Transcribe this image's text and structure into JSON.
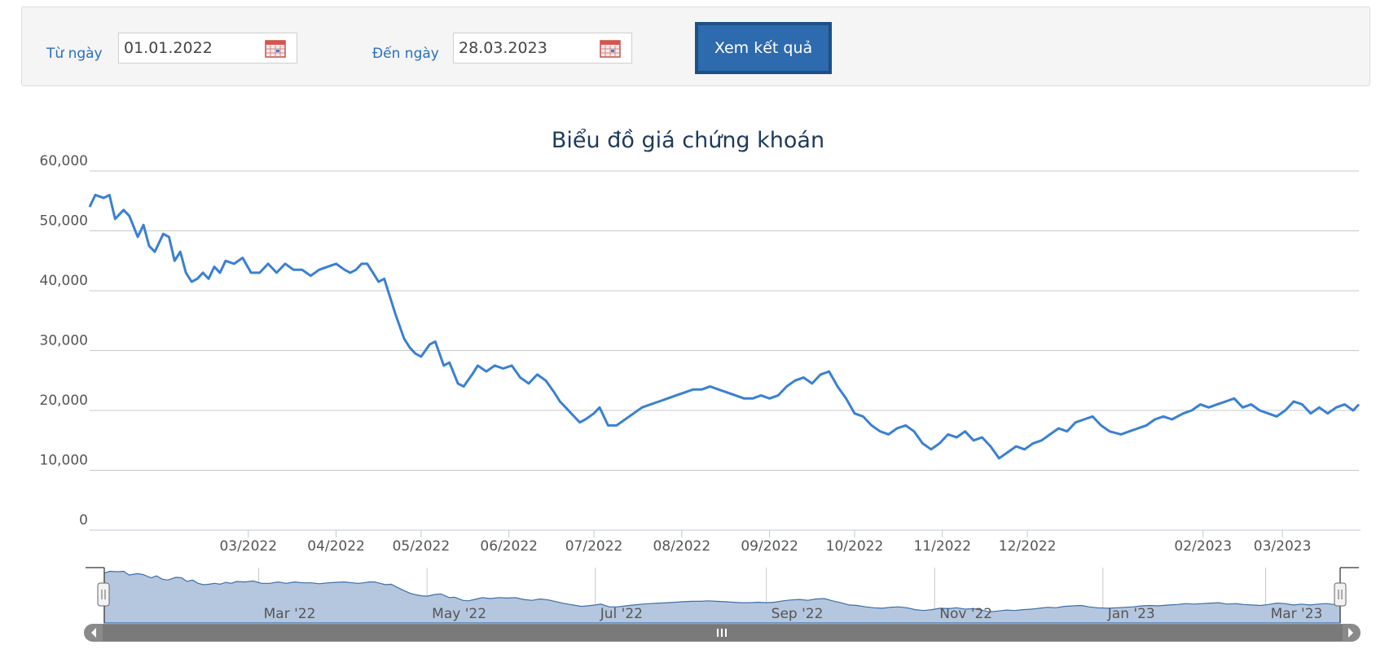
{
  "filter": {
    "from_label": "Từ ngày",
    "from_value": "01.01.2022",
    "to_label": "Đến ngày",
    "to_value": "28.03.2023",
    "submit_label": "Xem kết quả"
  },
  "colors": {
    "line": "#3a80d2",
    "grid": "#c8c8c8",
    "navigator_fill": "#b5c7df",
    "navigator_line": "#3d6ea8",
    "scrollbar": "#8a8a8a"
  },
  "chart_data": {
    "type": "line",
    "title": "Biểu đồ giá chứng khoán",
    "ylim": [
      0,
      60000
    ],
    "yticks": [
      "0",
      "10,000",
      "20,000",
      "30,000",
      "40,000",
      "50,000",
      "60,000"
    ],
    "xlim": [
      "2022-01-04",
      "2023-03-28"
    ],
    "xticks": [
      {
        "date": "2022-03-01",
        "label": "03/2022"
      },
      {
        "date": "2022-04-01",
        "label": "04/2022"
      },
      {
        "date": "2022-05-01",
        "label": "05/2022"
      },
      {
        "date": "2022-06-01",
        "label": "06/2022"
      },
      {
        "date": "2022-07-01",
        "label": "07/2022"
      },
      {
        "date": "2022-08-01",
        "label": "08/2022"
      },
      {
        "date": "2022-09-01",
        "label": "09/2022"
      },
      {
        "date": "2022-10-01",
        "label": "10/2022"
      },
      {
        "date": "2022-11-01",
        "label": "11/2022"
      },
      {
        "date": "2022-12-01",
        "label": "12/2022"
      },
      {
        "date": "2023-02-01",
        "label": "02/2023"
      },
      {
        "date": "2023-03-01",
        "label": "03/2023"
      }
    ],
    "navigator_ticks": [
      {
        "date": "2022-03-01",
        "label": "Mar '22"
      },
      {
        "date": "2022-05-01",
        "label": "May '22"
      },
      {
        "date": "2022-07-01",
        "label": "Jul '22"
      },
      {
        "date": "2022-09-01",
        "label": "Sep '22"
      },
      {
        "date": "2022-11-01",
        "label": "Nov '22"
      },
      {
        "date": "2023-01-01",
        "label": "Jan '23"
      },
      {
        "date": "2023-03-01",
        "label": "Mar '23"
      }
    ],
    "grid": true,
    "legend": "none",
    "series": [
      {
        "x": [
          "2022-01-04",
          "2022-01-06",
          "2022-01-09",
          "2022-01-11",
          "2022-01-13",
          "2022-01-16",
          "2022-01-18",
          "2022-01-21",
          "2022-01-23",
          "2022-01-25",
          "2022-01-27",
          "2022-01-30",
          "2022-02-01",
          "2022-02-03",
          "2022-02-05",
          "2022-02-07",
          "2022-02-09",
          "2022-02-11",
          "2022-02-13",
          "2022-02-15",
          "2022-02-17",
          "2022-02-19",
          "2022-02-21",
          "2022-02-24",
          "2022-02-27",
          "2022-03-02",
          "2022-03-05",
          "2022-03-08",
          "2022-03-11",
          "2022-03-14",
          "2022-03-17",
          "2022-03-20",
          "2022-03-23",
          "2022-03-26",
          "2022-03-29",
          "2022-04-01",
          "2022-04-04",
          "2022-04-06",
          "2022-04-08",
          "2022-04-10",
          "2022-04-12",
          "2022-04-14",
          "2022-04-16",
          "2022-04-18",
          "2022-04-20",
          "2022-04-22",
          "2022-04-25",
          "2022-04-27",
          "2022-04-29",
          "2022-05-01",
          "2022-05-04",
          "2022-05-06",
          "2022-05-09",
          "2022-05-11",
          "2022-05-14",
          "2022-05-16",
          "2022-05-19",
          "2022-05-21",
          "2022-05-24",
          "2022-05-27",
          "2022-05-30",
          "2022-06-02",
          "2022-06-05",
          "2022-06-08",
          "2022-06-11",
          "2022-06-14",
          "2022-06-17",
          "2022-06-19",
          "2022-06-21",
          "2022-06-24",
          "2022-06-26",
          "2022-06-28",
          "2022-07-01",
          "2022-07-03",
          "2022-07-06",
          "2022-07-09",
          "2022-07-12",
          "2022-07-15",
          "2022-07-18",
          "2022-07-21",
          "2022-07-24",
          "2022-07-27",
          "2022-07-30",
          "2022-08-02",
          "2022-08-05",
          "2022-08-08",
          "2022-08-11",
          "2022-08-14",
          "2022-08-17",
          "2022-08-20",
          "2022-08-23",
          "2022-08-26",
          "2022-08-29",
          "2022-09-01",
          "2022-09-04",
          "2022-09-07",
          "2022-09-10",
          "2022-09-13",
          "2022-09-16",
          "2022-09-19",
          "2022-09-22",
          "2022-09-25",
          "2022-09-28",
          "2022-10-01",
          "2022-10-04",
          "2022-10-07",
          "2022-10-10",
          "2022-10-13",
          "2022-10-16",
          "2022-10-19",
          "2022-10-22",
          "2022-10-25",
          "2022-10-28",
          "2022-10-31",
          "2022-11-03",
          "2022-11-06",
          "2022-11-09",
          "2022-11-12",
          "2022-11-15",
          "2022-11-18",
          "2022-11-21",
          "2022-11-24",
          "2022-11-27",
          "2022-11-30",
          "2022-12-03",
          "2022-12-06",
          "2022-12-09",
          "2022-12-12",
          "2022-12-15",
          "2022-12-18",
          "2022-12-21",
          "2022-12-24",
          "2022-12-27",
          "2022-12-30",
          "2023-01-03",
          "2023-01-06",
          "2023-01-09",
          "2023-01-12",
          "2023-01-15",
          "2023-01-18",
          "2023-01-21",
          "2023-01-25",
          "2023-01-28",
          "2023-01-31",
          "2023-02-03",
          "2023-02-06",
          "2023-02-09",
          "2023-02-12",
          "2023-02-15",
          "2023-02-18",
          "2023-02-21",
          "2023-02-24",
          "2023-02-27",
          "2023-03-02",
          "2023-03-05",
          "2023-03-08",
          "2023-03-11",
          "2023-03-14",
          "2023-03-17",
          "2023-03-20",
          "2023-03-23",
          "2023-03-26",
          "2023-03-28"
        ],
        "values": [
          54000,
          56000,
          55500,
          56000,
          52000,
          53500,
          52500,
          49000,
          51000,
          47500,
          46500,
          49500,
          49000,
          45000,
          46500,
          43000,
          41500,
          42000,
          43000,
          42000,
          44000,
          43000,
          45000,
          44500,
          45500,
          43000,
          43000,
          44500,
          43000,
          44500,
          43500,
          43500,
          42500,
          43500,
          44000,
          44500,
          43500,
          43000,
          43500,
          44500,
          44500,
          43000,
          41500,
          42000,
          39000,
          36000,
          32000,
          30500,
          29500,
          29000,
          31000,
          31500,
          27500,
          28000,
          24500,
          24000,
          26000,
          27500,
          26500,
          27500,
          27000,
          27500,
          25500,
          24500,
          26000,
          25000,
          23000,
          21500,
          20500,
          19000,
          18000,
          18500,
          19500,
          20500,
          17500,
          17500,
          18500,
          19500,
          20500,
          21000,
          21500,
          22000,
          22500,
          23000,
          23500,
          23500,
          24000,
          23500,
          23000,
          22500,
          22000,
          22000,
          22500,
          22000,
          22500,
          24000,
          25000,
          25500,
          24500,
          26000,
          26500,
          24000,
          22000,
          19500,
          19000,
          17500,
          16500,
          16000,
          17000,
          17500,
          16500,
          14500,
          13500,
          14500,
          16000,
          15500,
          16500,
          15000,
          15500,
          14000,
          12000,
          13000,
          14000,
          13500,
          14500,
          15000,
          16000,
          17000,
          16500,
          18000,
          18500,
          19000,
          17500,
          16500,
          16000,
          16500,
          17000,
          17500,
          18500,
          19000,
          18500,
          19500,
          20000,
          21000,
          20500,
          21000,
          21500,
          22000,
          20500,
          21000,
          20000,
          19500,
          19000,
          20000,
          21500,
          21000,
          19500,
          20500,
          19500,
          20500,
          21000,
          20000,
          21000
        ]
      }
    ]
  }
}
